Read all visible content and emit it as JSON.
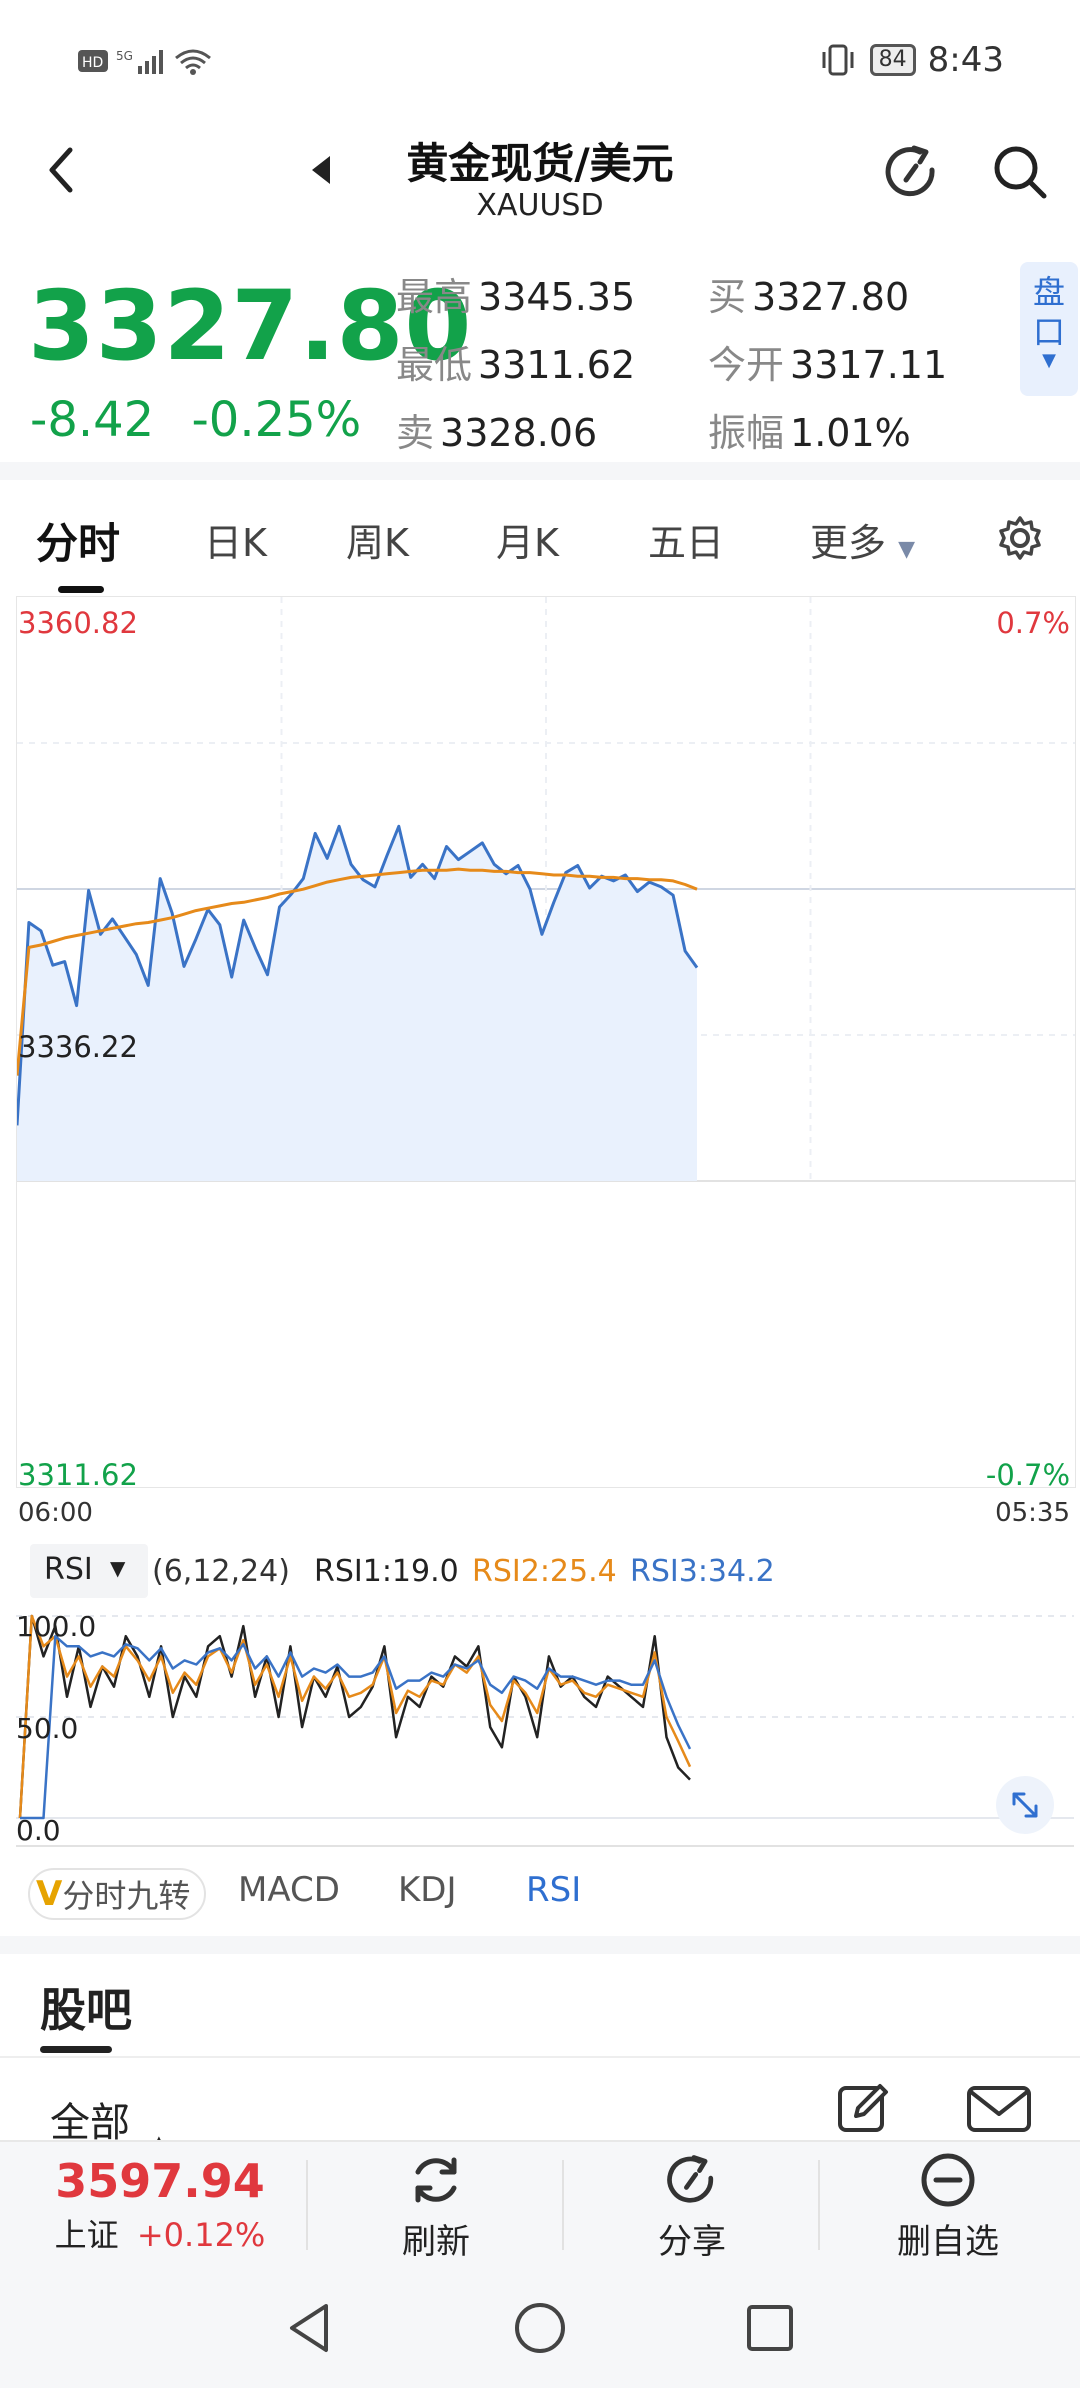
{
  "status_bar": {
    "left_icons": "HD 5G signal wifi",
    "battery": "84",
    "time": "8:43"
  },
  "header": {
    "title": "黄金现货/美元",
    "subtitle": "XAUUSD"
  },
  "quote": {
    "price": "3327.80",
    "change": "-8.42",
    "change_pct": "-0.25%",
    "high_label": "最高",
    "high": "3345.35",
    "low_label": "最低",
    "low": "3311.62",
    "sell_label": "卖",
    "sell": "3328.06",
    "buy_label": "买",
    "buy": "3327.80",
    "open_label": "今开",
    "open": "3317.11",
    "amp_label": "振幅",
    "amp": "1.01%",
    "pankou": "盘口"
  },
  "tabs": [
    "分时",
    "日K",
    "周K",
    "月K",
    "五日",
    "更多"
  ],
  "chart_data": [
    {
      "type": "line",
      "title": "",
      "series": [
        {
          "values": [
            3316.3,
            3333.4,
            3332.7,
            3329.8,
            3330.1,
            3326.4,
            3336.1,
            3332.4,
            3333.7,
            3332.2,
            3330.7,
            3328.1,
            3337.1,
            3334.2,
            3329.7,
            3332.0,
            3334.5,
            3333.2,
            3328.8,
            3333.6,
            3331.2,
            3329.0,
            3334.7,
            3335.8,
            3337.1,
            3340.9,
            3338.8,
            3341.5,
            3338.3,
            3337.0,
            3336.4,
            3339.0,
            3341.5,
            3337.2,
            3338.3,
            3337.1,
            3339.8,
            3338.7,
            3339.4,
            3340.1,
            3338.3,
            3337.5,
            3338.2,
            3336.2,
            3332.4,
            3335.1,
            3337.6,
            3338.2,
            3336.3,
            3337.3,
            3336.9,
            3337.4,
            3336.0,
            3336.8,
            3336.4,
            3335.7,
            3331.0,
            3329.6
          ],
          "color": "#3a73c6"
        },
        {
          "values": [
            3320.5,
            3331.3,
            3331.5,
            3331.8,
            3332.1,
            3332.3,
            3332.5,
            3332.7,
            3332.9,
            3333.1,
            3333.3,
            3333.4,
            3333.6,
            3333.8,
            3334.1,
            3334.4,
            3334.6,
            3334.8,
            3335.0,
            3335.1,
            3335.3,
            3335.5,
            3335.8,
            3336.0,
            3336.2,
            3336.5,
            3336.8,
            3337.0,
            3337.2,
            3337.3,
            3337.4,
            3337.5,
            3337.6,
            3337.7,
            3337.8,
            3337.8,
            3337.8,
            3337.9,
            3337.8,
            3337.8,
            3337.7,
            3337.7,
            3337.6,
            3337.6,
            3337.5,
            3337.4,
            3337.4,
            3337.3,
            3337.3,
            3337.2,
            3337.2,
            3337.1,
            3337.1,
            3337.0,
            3337.0,
            3336.9,
            3336.6,
            3336.2
          ],
          "color": "#e68a1a"
        }
      ],
      "y_labels": {
        "top": "3360.82",
        "mid": "3336.22",
        "bottom": "3311.62"
      },
      "pct_labels": {
        "top": "0.7%",
        "bottom": "-0.7%"
      },
      "ylim": [
        3311.62,
        3360.82
      ],
      "x_labels": {
        "start": "06:00",
        "end": "05:35"
      },
      "fill": true
    },
    {
      "type": "line",
      "title": "RSI",
      "params": "(6,12,24)",
      "legend": [
        {
          "label": "RSI1:19.0",
          "color": "#222222"
        },
        {
          "label": "RSI2:25.4",
          "color": "#e68a1a"
        },
        {
          "label": "RSI3:34.2",
          "color": "#3a73c6"
        }
      ],
      "series": [
        {
          "name": "RSI1",
          "values": [
            0,
            100,
            80,
            95,
            60,
            85,
            55,
            75,
            65,
            90,
            80,
            60,
            85,
            50,
            70,
            60,
            85,
            90,
            70,
            95,
            60,
            80,
            50,
            85,
            45,
            70,
            60,
            75,
            50,
            55,
            65,
            85,
            40,
            60,
            55,
            70,
            65,
            80,
            75,
            85,
            45,
            35,
            70,
            60,
            40,
            80,
            65,
            70,
            60,
            55,
            70,
            65,
            60,
            55,
            90,
            40,
            25,
            19
          ],
          "color": "#222222"
        },
        {
          "name": "RSI2",
          "values": [
            0,
            100,
            85,
            90,
            70,
            80,
            65,
            75,
            70,
            85,
            78,
            68,
            80,
            62,
            72,
            66,
            80,
            84,
            72,
            88,
            66,
            76,
            60,
            80,
            58,
            70,
            64,
            72,
            60,
            62,
            66,
            80,
            52,
            63,
            60,
            68,
            66,
            76,
            72,
            80,
            56,
            48,
            68,
            62,
            52,
            74,
            66,
            68,
            62,
            60,
            66,
            64,
            62,
            60,
            82,
            50,
            38,
            25.4
          ],
          "color": "#e68a1a"
        },
        {
          "name": "RSI3",
          "values": [
            0,
            0,
            0,
            90,
            85,
            85,
            80,
            82,
            80,
            86,
            84,
            78,
            84,
            74,
            78,
            76,
            82,
            84,
            78,
            86,
            74,
            80,
            70,
            82,
            70,
            74,
            72,
            76,
            70,
            70,
            72,
            80,
            64,
            68,
            68,
            72,
            70,
            76,
            74,
            78,
            66,
            62,
            70,
            68,
            64,
            74,
            70,
            70,
            68,
            66,
            68,
            68,
            66,
            66,
            78,
            60,
            46,
            34.2
          ],
          "color": "#3a73c6"
        }
      ],
      "y_labels": [
        "100.0",
        "50.0",
        "0.0"
      ],
      "ylim": [
        0,
        100
      ]
    }
  ],
  "rsi_selector": "RSI",
  "indicator_tabs": [
    "分时九转",
    "MACD",
    "KDJ",
    "RSI"
  ],
  "indicator_active": "RSI",
  "guba": {
    "title": "股吧",
    "filter": "全部"
  },
  "bottom_bar": {
    "index_value": "3597.94",
    "index_name": "上证",
    "index_change": "+0.12%",
    "refresh": "刷新",
    "share": "分享",
    "remove": "删自选"
  },
  "colors": {
    "up": "#e0383e",
    "down": "#12a24a",
    "accent": "#2f6fd0"
  }
}
